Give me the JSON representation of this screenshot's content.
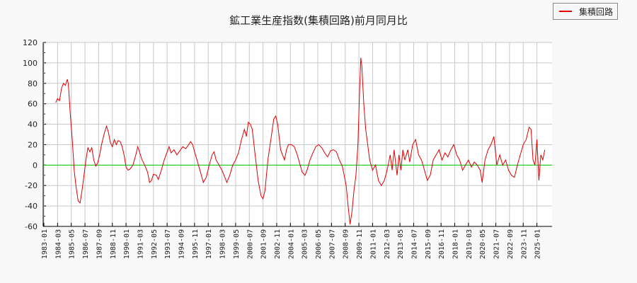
{
  "chart_data": {
    "type": "line",
    "title": "鉱工業生産指数(集積回路)前月同月比",
    "xlabel": "",
    "ylabel": "",
    "ylim": [
      -60,
      120
    ],
    "yticks": [
      120,
      100,
      80,
      60,
      40,
      20,
      0,
      -20,
      -40,
      -60
    ],
    "grid": true,
    "legend_position": "top-right",
    "x_tick_labels": [
      "1983-01",
      "1984-03",
      "1985-05",
      "1986-07",
      "1987-09",
      "1988-11",
      "1990-01",
      "1991-03",
      "1992-05",
      "1993-07",
      "1994-09",
      "1995-11",
      "1997-01",
      "1998-03",
      "1999-05",
      "2000-07",
      "2001-09",
      "2002-11",
      "2004-01",
      "2005-03",
      "2006-05",
      "2007-07",
      "2008-09",
      "2009-11",
      "2011-01",
      "2012-03",
      "2013-05",
      "2014-07",
      "2015-09",
      "2016-11",
      "2018-01",
      "2019-03",
      "2020-05",
      "2021-07",
      "2022-09",
      "2023-11",
      "2025-01"
    ],
    "reference_line": {
      "y": 0,
      "color": "#00cc00"
    },
    "series": [
      {
        "name": "集積回路",
        "color": "#e00000",
        "points": [
          [
            "1984-01",
            61
          ],
          [
            "1984-03",
            65
          ],
          [
            "1984-05",
            63
          ],
          [
            "1984-07",
            75
          ],
          [
            "1984-09",
            80
          ],
          [
            "1984-11",
            78
          ],
          [
            "1985-01",
            84
          ],
          [
            "1985-02",
            79
          ],
          [
            "1985-04",
            50
          ],
          [
            "1985-06",
            25
          ],
          [
            "1985-08",
            -5
          ],
          [
            "1985-10",
            -22
          ],
          [
            "1985-12",
            -35
          ],
          [
            "1986-02",
            -37
          ],
          [
            "1986-04",
            -25
          ],
          [
            "1986-06",
            -10
          ],
          [
            "1986-08",
            5
          ],
          [
            "1986-10",
            17
          ],
          [
            "1986-12",
            13
          ],
          [
            "1987-02",
            17
          ],
          [
            "1987-04",
            5
          ],
          [
            "1987-06",
            -1
          ],
          [
            "1987-08",
            2
          ],
          [
            "1987-10",
            10
          ],
          [
            "1987-12",
            20
          ],
          [
            "1988-03",
            32
          ],
          [
            "1988-05",
            38
          ],
          [
            "1988-07",
            32
          ],
          [
            "1988-09",
            22
          ],
          [
            "1988-11",
            18
          ],
          [
            "1989-01",
            25
          ],
          [
            "1989-03",
            20
          ],
          [
            "1989-05",
            24
          ],
          [
            "1989-07",
            23
          ],
          [
            "1989-09",
            18
          ],
          [
            "1989-11",
            10
          ],
          [
            "1990-01",
            -2
          ],
          [
            "1990-03",
            -5
          ],
          [
            "1990-05",
            -4
          ],
          [
            "1990-08",
            0
          ],
          [
            "1990-11",
            10
          ],
          [
            "1991-01",
            18
          ],
          [
            "1991-03",
            12
          ],
          [
            "1991-05",
            6
          ],
          [
            "1991-08",
            0
          ],
          [
            "1991-11",
            -7
          ],
          [
            "1992-01",
            -17
          ],
          [
            "1992-03",
            -15
          ],
          [
            "1992-05",
            -9
          ],
          [
            "1992-08",
            -10
          ],
          [
            "1992-10",
            -14
          ],
          [
            "1993-01",
            -5
          ],
          [
            "1993-04",
            5
          ],
          [
            "1993-07",
            13
          ],
          [
            "1993-09",
            18
          ],
          [
            "1993-11",
            12
          ],
          [
            "1994-02",
            15
          ],
          [
            "1994-05",
            10
          ],
          [
            "1994-08",
            14
          ],
          [
            "1994-11",
            18
          ],
          [
            "1995-02",
            16
          ],
          [
            "1995-05",
            20
          ],
          [
            "1995-07",
            23
          ],
          [
            "1995-09",
            20
          ],
          [
            "1995-12",
            10
          ],
          [
            "1996-03",
            0
          ],
          [
            "1996-06",
            -10
          ],
          [
            "1996-08",
            -17
          ],
          [
            "1996-11",
            -12
          ],
          [
            "1997-02",
            0
          ],
          [
            "1997-05",
            10
          ],
          [
            "1997-07",
            13
          ],
          [
            "1997-09",
            5
          ],
          [
            "1997-12",
            0
          ],
          [
            "1998-03",
            -5
          ],
          [
            "1998-06",
            -12
          ],
          [
            "1998-08",
            -17
          ],
          [
            "1998-11",
            -10
          ],
          [
            "1999-02",
            0
          ],
          [
            "1999-05",
            5
          ],
          [
            "1999-08",
            12
          ],
          [
            "1999-11",
            25
          ],
          [
            "2000-02",
            35
          ],
          [
            "2000-04",
            28
          ],
          [
            "2000-06",
            42
          ],
          [
            "2000-08",
            40
          ],
          [
            "2000-10",
            35
          ],
          [
            "2001-01",
            10
          ],
          [
            "2001-04",
            -15
          ],
          [
            "2001-07",
            -30
          ],
          [
            "2001-09",
            -33
          ],
          [
            "2001-11",
            -25
          ],
          [
            "2002-02",
            5
          ],
          [
            "2002-05",
            25
          ],
          [
            "2002-08",
            45
          ],
          [
            "2002-10",
            48
          ],
          [
            "2002-12",
            40
          ],
          [
            "2003-03",
            15
          ],
          [
            "2003-05",
            10
          ],
          [
            "2003-07",
            5
          ],
          [
            "2003-09",
            15
          ],
          [
            "2003-11",
            20
          ],
          [
            "2004-02",
            20
          ],
          [
            "2004-05",
            18
          ],
          [
            "2004-08",
            10
          ],
          [
            "2004-11",
            0
          ],
          [
            "2005-01",
            -7
          ],
          [
            "2005-04",
            -10
          ],
          [
            "2005-06",
            -5
          ],
          [
            "2005-09",
            5
          ],
          [
            "2005-12",
            12
          ],
          [
            "2006-03",
            18
          ],
          [
            "2006-06",
            20
          ],
          [
            "2006-09",
            17
          ],
          [
            "2006-12",
            12
          ],
          [
            "2007-03",
            8
          ],
          [
            "2007-06",
            14
          ],
          [
            "2007-09",
            15
          ],
          [
            "2007-12",
            13
          ],
          [
            "2008-03",
            5
          ],
          [
            "2008-06",
            -1
          ],
          [
            "2008-08",
            -10
          ],
          [
            "2008-10",
            -20
          ],
          [
            "2008-12",
            -40
          ],
          [
            "2009-02",
            -58
          ],
          [
            "2009-04",
            -45
          ],
          [
            "2009-06",
            -25
          ],
          [
            "2009-08",
            -10
          ],
          [
            "2009-10",
            20
          ],
          [
            "2009-12",
            80
          ],
          [
            "2010-01",
            105
          ],
          [
            "2010-02",
            97
          ],
          [
            "2010-04",
            60
          ],
          [
            "2010-06",
            35
          ],
          [
            "2010-08",
            20
          ],
          [
            "2010-10",
            5
          ],
          [
            "2011-01",
            -5
          ],
          [
            "2011-04",
            0
          ],
          [
            "2011-07",
            -15
          ],
          [
            "2011-10",
            -20
          ],
          [
            "2012-01",
            -15
          ],
          [
            "2012-03",
            -8
          ],
          [
            "2012-05",
            0
          ],
          [
            "2012-07",
            10
          ],
          [
            "2012-09",
            -5
          ],
          [
            "2012-11",
            15
          ],
          [
            "2013-02",
            -10
          ],
          [
            "2013-04",
            10
          ],
          [
            "2013-06",
            -5
          ],
          [
            "2013-08",
            15
          ],
          [
            "2013-10",
            5
          ],
          [
            "2014-01",
            15
          ],
          [
            "2014-03",
            3
          ],
          [
            "2014-06",
            20
          ],
          [
            "2014-09",
            25
          ],
          [
            "2014-12",
            10
          ],
          [
            "2015-03",
            5
          ],
          [
            "2015-06",
            -5
          ],
          [
            "2015-09",
            -15
          ],
          [
            "2015-12",
            -10
          ],
          [
            "2016-03",
            5
          ],
          [
            "2016-06",
            10
          ],
          [
            "2016-09",
            15
          ],
          [
            "2016-12",
            5
          ],
          [
            "2017-03",
            12
          ],
          [
            "2017-06",
            8
          ],
          [
            "2017-09",
            15
          ],
          [
            "2017-12",
            20
          ],
          [
            "2018-03",
            10
          ],
          [
            "2018-06",
            5
          ],
          [
            "2018-09",
            -5
          ],
          [
            "2018-12",
            0
          ],
          [
            "2019-03",
            5
          ],
          [
            "2019-06",
            -2
          ],
          [
            "2019-09",
            3
          ],
          [
            "2019-12",
            0
          ],
          [
            "2020-03",
            -5
          ],
          [
            "2020-05",
            -17
          ],
          [
            "2020-08",
            5
          ],
          [
            "2020-11",
            15
          ],
          [
            "2021-02",
            20
          ],
          [
            "2021-05",
            28
          ],
          [
            "2021-08",
            0
          ],
          [
            "2021-11",
            10
          ],
          [
            "2022-02",
            0
          ],
          [
            "2022-05",
            5
          ],
          [
            "2022-08",
            -5
          ],
          [
            "2022-11",
            -10
          ],
          [
            "2023-02",
            -12
          ],
          [
            "2023-05",
            0
          ],
          [
            "2023-08",
            10
          ],
          [
            "2023-11",
            20
          ],
          [
            "2024-02",
            25
          ],
          [
            "2024-05",
            37
          ],
          [
            "2024-07",
            35
          ],
          [
            "2024-09",
            5
          ],
          [
            "2024-11",
            0
          ],
          [
            "2025-01",
            25
          ],
          [
            "2025-03",
            -15
          ],
          [
            "2025-05",
            10
          ],
          [
            "2025-07",
            5
          ],
          [
            "2025-09",
            15
          ]
        ]
      }
    ]
  },
  "legend": {
    "label": "集積回路"
  }
}
